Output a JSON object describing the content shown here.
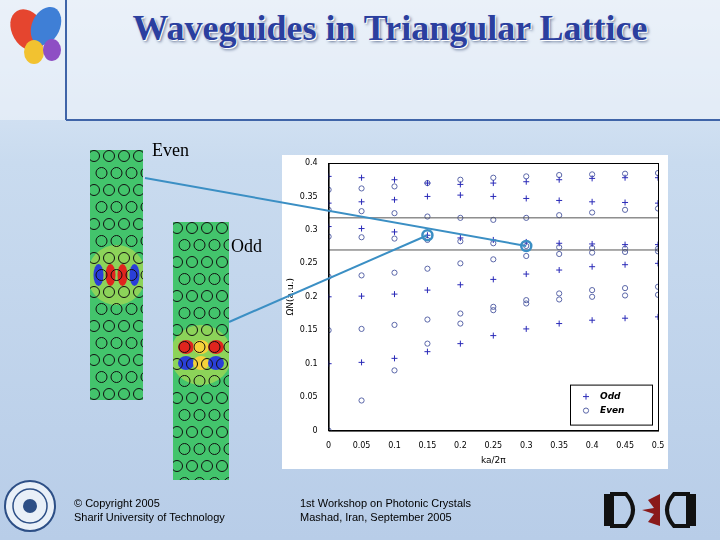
{
  "slide": {
    "title": "Waveguides in Triangular Lattice",
    "footer_left": [
      "© Copyright 2005",
      "Sharif University of Technology"
    ],
    "footer_center": [
      "1st Workshop on Photonic Crystals",
      "Mashad, Iran, September 2005"
    ]
  },
  "chart_data": {
    "type": "scatter",
    "x_label": "ka/2π",
    "y_label": "ΩN(a.u.)",
    "xlim": [
      0,
      0.5
    ],
    "xticks": [
      0,
      0.05,
      0.1,
      0.15,
      0.2,
      0.25,
      0.3,
      0.35,
      0.4,
      0.45,
      0.5
    ],
    "ylim": [
      0,
      0.4
    ],
    "yticks": [
      0,
      0.05,
      0.1,
      0.15,
      0.2,
      0.25,
      0.3,
      0.35,
      0.4
    ],
    "grid": false,
    "legend": "lower right",
    "hlines": [
      0.318,
      0.27
    ],
    "highlights": [
      {
        "label": "Even",
        "x": 0.3,
        "y": 0.276
      },
      {
        "label": "Odd",
        "x": 0.15,
        "y": 0.292
      }
    ],
    "series": [
      {
        "name": "Odd",
        "color": "#2a2ab8",
        "marker": "plus",
        "x": [
          0,
          0.05,
          0.1,
          0.15,
          0.2,
          0.25,
          0.3,
          0.35,
          0.4,
          0.45,
          0.5,
          0,
          0.05,
          0.1,
          0.15,
          0.2,
          0.25,
          0.3,
          0.35,
          0.4,
          0.45,
          0.5,
          0,
          0.05,
          0.1,
          0.15,
          0.2,
          0.25,
          0.3,
          0.35,
          0.4,
          0.45,
          0.5,
          0,
          0.05,
          0.1,
          0.15,
          0.2,
          0.25,
          0.3,
          0.35,
          0.4,
          0.45,
          0.5,
          0,
          0.05,
          0.1,
          0.15,
          0.2,
          0.25,
          0.3,
          0.35,
          0.4,
          0.45,
          0.5
        ],
        "values": [
          0.1,
          0.102,
          0.108,
          0.118,
          0.13,
          0.142,
          0.152,
          0.16,
          0.165,
          0.168,
          0.17,
          0.2,
          0.201,
          0.204,
          0.21,
          0.218,
          0.226,
          0.234,
          0.24,
          0.245,
          0.248,
          0.25,
          0.305,
          0.302,
          0.297,
          0.292,
          0.288,
          0.285,
          0.282,
          0.28,
          0.279,
          0.278,
          0.278,
          0.34,
          0.342,
          0.345,
          0.35,
          0.352,
          0.35,
          0.347,
          0.344,
          0.342,
          0.341,
          0.34,
          0.38,
          0.378,
          0.375,
          0.37,
          0.368,
          0.37,
          0.372,
          0.375,
          0.377,
          0.378,
          0.378
        ]
      },
      {
        "name": "Even",
        "color": "#5a66a8",
        "marker": "circle",
        "x": [
          0,
          0.05,
          0.1,
          0.15,
          0.2,
          0.25,
          0.3,
          0.35,
          0.4,
          0.45,
          0.5,
          0,
          0.05,
          0.1,
          0.15,
          0.2,
          0.25,
          0.3,
          0.35,
          0.4,
          0.45,
          0.5,
          0,
          0.05,
          0.1,
          0.15,
          0.2,
          0.25,
          0.3,
          0.35,
          0.4,
          0.45,
          0.5,
          0,
          0.05,
          0.1,
          0.15,
          0.2,
          0.25,
          0.3,
          0.35,
          0.4,
          0.45,
          0.5,
          0,
          0.05,
          0.1,
          0.15,
          0.2,
          0.25,
          0.3,
          0.35,
          0.4,
          0.45,
          0.5,
          0,
          0.05,
          0.1,
          0.15,
          0.2,
          0.25,
          0.3,
          0.35,
          0.4,
          0.45,
          0.5
        ],
        "values": [
          0,
          0.045,
          0.09,
          0.13,
          0.16,
          0.18,
          0.195,
          0.205,
          0.21,
          0.213,
          0.215,
          0.15,
          0.152,
          0.158,
          0.166,
          0.175,
          0.185,
          0.19,
          0.196,
          0.2,
          0.202,
          0.203,
          0.23,
          0.232,
          0.236,
          0.242,
          0.25,
          0.256,
          0.261,
          0.264,
          0.266,
          0.267,
          0.268,
          0.29,
          0.289,
          0.287,
          0.285,
          0.283,
          0.28,
          0.276,
          0.274,
          0.273,
          0.272,
          0.272,
          0.33,
          0.328,
          0.325,
          0.32,
          0.318,
          0.315,
          0.318,
          0.322,
          0.326,
          0.33,
          0.332,
          0.36,
          0.362,
          0.365,
          0.37,
          0.375,
          0.378,
          0.38,
          0.382,
          0.383,
          0.384,
          0.385
        ]
      }
    ]
  }
}
